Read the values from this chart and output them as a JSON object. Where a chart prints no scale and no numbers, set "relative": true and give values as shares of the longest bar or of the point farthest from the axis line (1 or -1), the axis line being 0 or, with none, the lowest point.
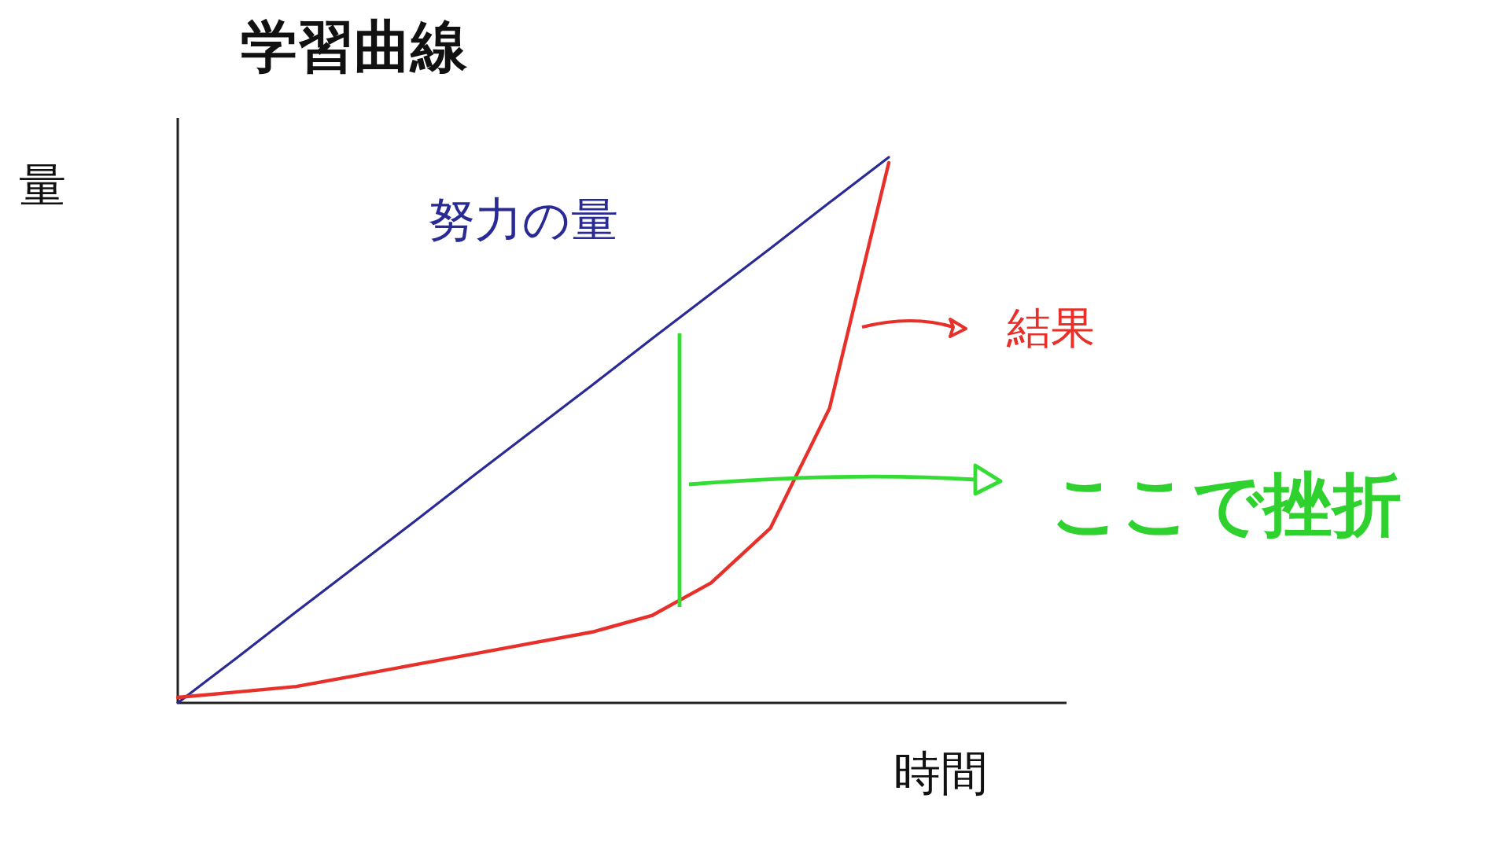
{
  "chart_data": {
    "type": "line",
    "title": "学習曲線",
    "xlabel": "時間",
    "ylabel": "量",
    "relative": true,
    "grid": false,
    "categories": [
      null,
      null,
      null,
      null,
      null,
      null,
      null,
      null,
      null,
      null,
      null,
      null,
      null,
      null,
      null,
      null
    ],
    "series": [
      {
        "name": "努力の量",
        "color": "#2a2a96",
        "values": [
          0,
          0.083,
          0.167,
          0.25,
          0.333,
          0.417,
          0.5,
          0.583,
          0.667,
          0.75,
          0.833,
          0.917,
          1,
          null,
          null,
          null
        ]
      },
      {
        "name": "結果",
        "color": "#e8302a",
        "values": [
          0.01,
          0.02,
          0.03,
          0.05,
          0.07,
          0.09,
          0.11,
          0.13,
          0.16,
          0.22,
          0.32,
          0.54,
          0.99,
          null,
          null,
          null
        ]
      }
    ],
    "annotations": [
      "ここで挫折"
    ]
  }
}
